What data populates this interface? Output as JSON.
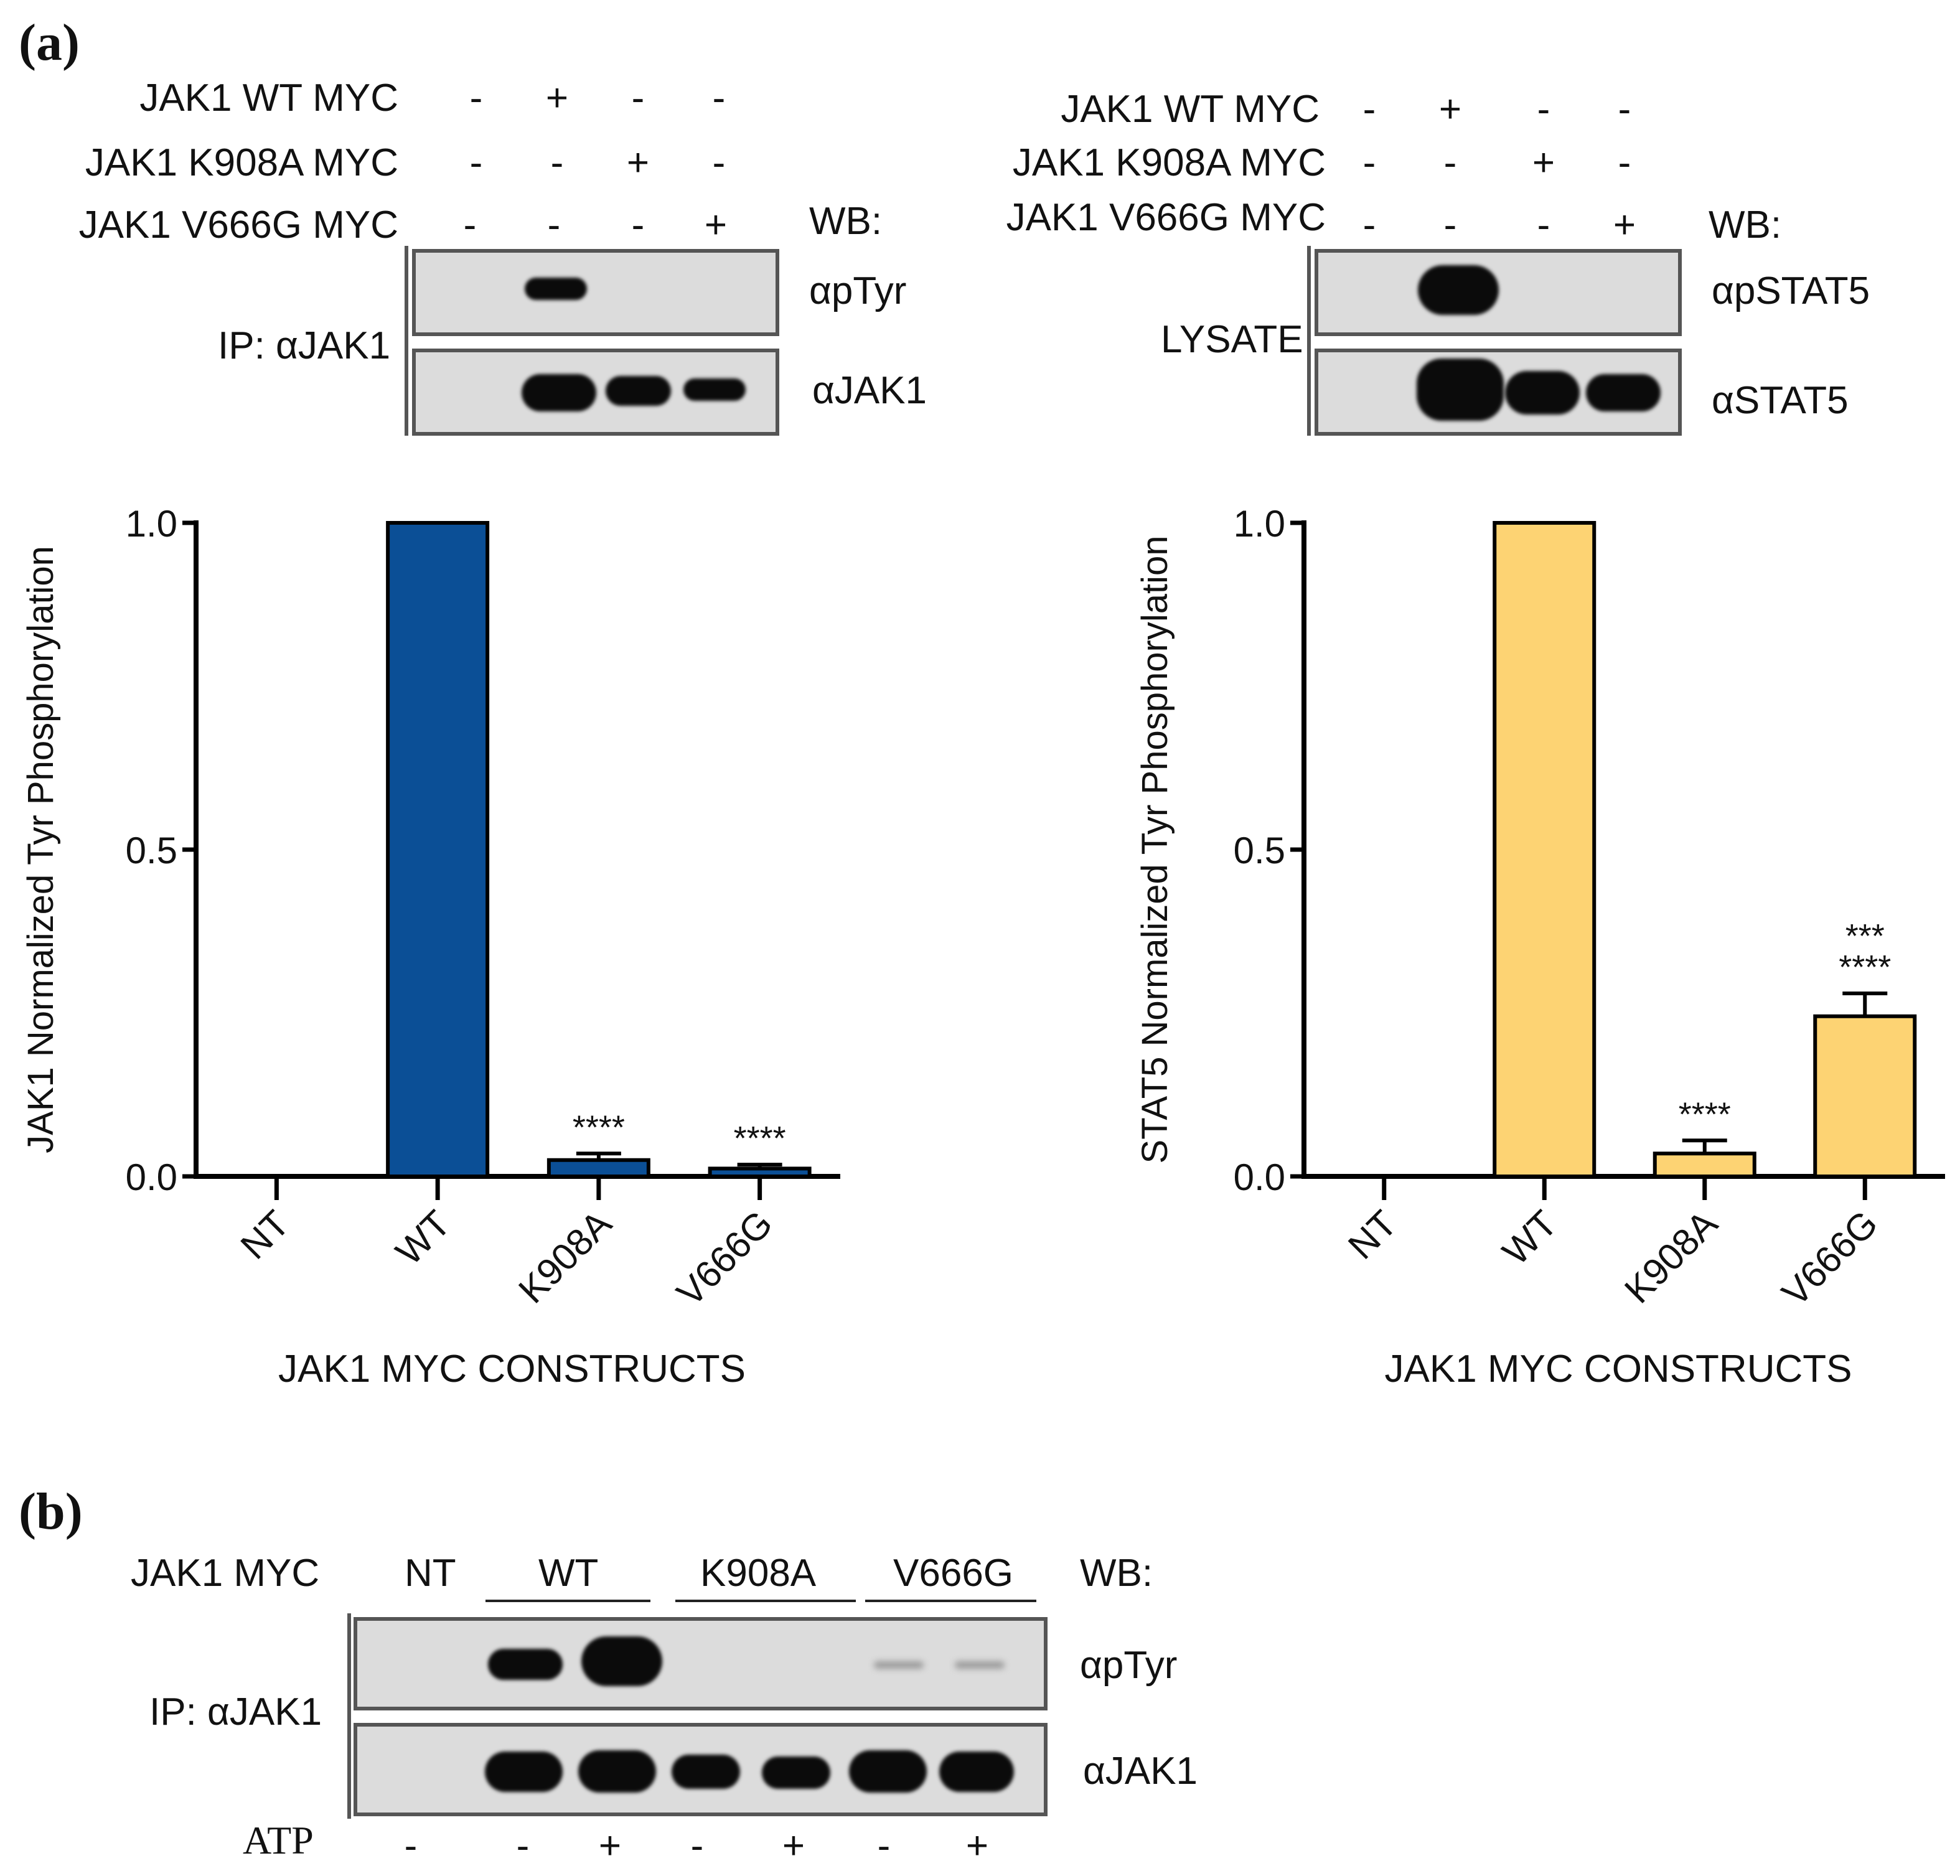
{
  "panel_a": {
    "label": "(a)",
    "left_blot": {
      "rows": [
        {
          "label": "JAK1 WT MYC",
          "signs": [
            "-",
            "+",
            "-",
            "-"
          ]
        },
        {
          "label": "JAK1 K908A MYC",
          "signs": [
            "-",
            "-",
            "+",
            "-"
          ]
        },
        {
          "label": "JAK1 V666G MYC",
          "signs": [
            "-",
            "-",
            "-",
            "+"
          ]
        }
      ],
      "wb": "WB:",
      "side_label": "IP: αJAK1",
      "blots": [
        "αpTyr",
        "αJAK1"
      ]
    },
    "right_blot": {
      "rows": [
        {
          "label": "JAK1 WT MYC",
          "signs": [
            "-",
            "+",
            "-",
            "-"
          ]
        },
        {
          "label": "JAK1 K908A MYC",
          "signs": [
            "-",
            "-",
            "+",
            "-"
          ]
        },
        {
          "label": "JAK1 V666G MYC",
          "signs": [
            "-",
            "-",
            "-",
            "+"
          ]
        }
      ],
      "wb": "WB:",
      "side_label": "LYSATE",
      "blots": [
        "αpSTAT5",
        "αSTAT5"
      ]
    }
  },
  "chart_data": [
    {
      "type": "bar",
      "categories": [
        "NT",
        "WT",
        "K908A",
        "V666G"
      ],
      "values": [
        0.0,
        1.0,
        0.025,
        0.012
      ],
      "errors": [
        0.0,
        0.0,
        0.01,
        0.006
      ],
      "annotations": [
        [],
        [],
        [
          "****"
        ],
        [
          "****"
        ]
      ],
      "ylabel": "JAK1 Normalized Tyr Phosphorylation",
      "xlabel": "JAK1 MYC CONSTRUCTS",
      "ylim": [
        0,
        1.0
      ],
      "yticks": [
        "0.0",
        "0.5",
        "1.0"
      ],
      "color": "#0b4f96"
    },
    {
      "type": "bar",
      "categories": [
        "NT",
        "WT",
        "K908A",
        "V666G"
      ],
      "values": [
        0.0,
        1.0,
        0.035,
        0.245
      ],
      "errors": [
        0.0,
        0.0,
        0.02,
        0.035
      ],
      "annotations": [
        [],
        [],
        [
          "****"
        ],
        [
          "***",
          "****"
        ]
      ],
      "ylabel": "STAT5 Normalized Tyr Phosphorylation",
      "xlabel": "JAK1 MYC CONSTRUCTS",
      "ylim": [
        0,
        1.0
      ],
      "yticks": [
        "0.0",
        "0.5",
        "1.0"
      ],
      "color": "#fdd373"
    }
  ],
  "panel_b": {
    "label": "(b)",
    "row_label": "JAK1 MYC",
    "groups": [
      "NT",
      "WT",
      "K908A",
      "V666G"
    ],
    "wb": "WB:",
    "side_label": "IP: αJAK1",
    "blots": [
      "αpTyr",
      "αJAK1"
    ],
    "atp_label": "ATP",
    "atp_signs": [
      "-",
      "-",
      "+",
      "-",
      "+",
      "-",
      "+"
    ]
  }
}
